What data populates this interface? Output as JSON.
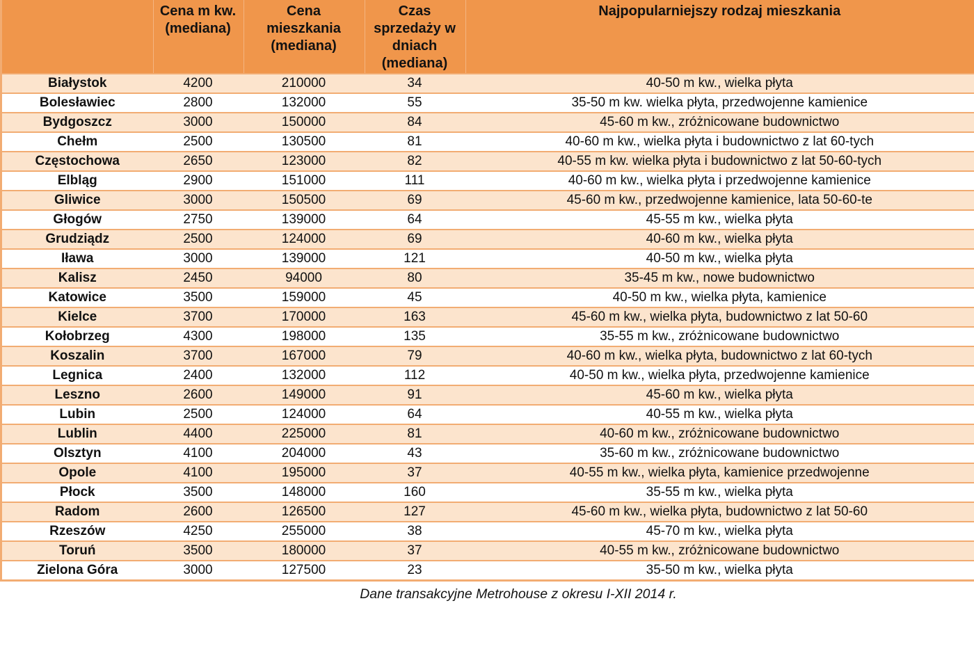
{
  "chart_data": {
    "type": "table",
    "title": "",
    "columns": [
      "",
      "Cena m kw.\n(mediana)",
      "Cena\nmieszkania\n(mediana)",
      "Czas\nsprzedaży w\ndniach\n(mediana)",
      "Najpopularniejszy rodzaj mieszkania"
    ],
    "rows": [
      [
        "Białystok",
        "4200",
        "210000",
        "34",
        "40-50 m kw., wielka płyta"
      ],
      [
        "Bolesławiec",
        "2800",
        "132000",
        "55",
        "35-50 m kw. wielka płyta, przedwojenne kamienice"
      ],
      [
        "Bydgoszcz",
        "3000",
        "150000",
        "84",
        "45-60 m kw., zróżnicowane budownictwo"
      ],
      [
        "Chełm",
        "2500",
        "130500",
        "81",
        "40-60 m kw., wielka płyta i budownictwo z lat 60-tych"
      ],
      [
        "Częstochowa",
        "2650",
        "123000",
        "82",
        "40-55 m kw. wielka płyta i budownictwo z lat 50-60-tych"
      ],
      [
        "Elbląg",
        "2900",
        "151000",
        "111",
        "40-60 m kw., wielka płyta i przedwojenne kamienice"
      ],
      [
        "Gliwice",
        "3000",
        "150500",
        "69",
        "45-60 m kw., przedwojenne kamienice, lata 50-60-te"
      ],
      [
        "Głogów",
        "2750",
        "139000",
        "64",
        "45-55 m kw., wielka płyta"
      ],
      [
        "Grudziądz",
        "2500",
        "124000",
        "69",
        "40-60 m kw., wielka płyta"
      ],
      [
        "Iława",
        "3000",
        "139000",
        "121",
        "40-50 m kw., wielka płyta"
      ],
      [
        "Kalisz",
        "2450",
        "94000",
        "80",
        "35-45 m kw., nowe budownictwo"
      ],
      [
        "Katowice",
        "3500",
        "159000",
        "45",
        "40-50 m kw., wielka płyta, kamienice"
      ],
      [
        "Kielce",
        "3700",
        "170000",
        "163",
        "45-60 m kw., wielka płyta, budownictwo z lat 50-60"
      ],
      [
        "Kołobrzeg",
        "4300",
        "198000",
        "135",
        "35-55 m kw., zróżnicowane budownictwo"
      ],
      [
        "Koszalin",
        "3700",
        "167000",
        "79",
        "40-60 m kw., wielka płyta, budownictwo z lat 60-tych"
      ],
      [
        "Legnica",
        "2400",
        "132000",
        "112",
        "40-50 m kw., wielka płyta, przedwojenne kamienice"
      ],
      [
        "Leszno",
        "2600",
        "149000",
        "91",
        "45-60 m kw., wielka płyta"
      ],
      [
        "Lubin",
        "2500",
        "124000",
        "64",
        "40-55 m kw., wielka płyta"
      ],
      [
        "Lublin",
        "4400",
        "225000",
        "81",
        "40-60 m kw., zróżnicowane budownictwo"
      ],
      [
        "Olsztyn",
        "4100",
        "204000",
        "43",
        "35-60 m kw., zróżnicowane budownictwo"
      ],
      [
        "Opole",
        "4100",
        "195000",
        "37",
        "40-55 m kw., wielka płyta, kamienice przedwojenne"
      ],
      [
        "Płock",
        "3500",
        "148000",
        "160",
        "35-55 m kw., wielka płyta"
      ],
      [
        "Radom",
        "2600",
        "126500",
        "127",
        "45-60 m kw., wielka płyta, budownictwo z lat 50-60"
      ],
      [
        "Rzeszów",
        "4250",
        "255000",
        "38",
        "45-70 m kw., wielka płyta"
      ],
      [
        "Toruń",
        "3500",
        "180000",
        "37",
        "40-55 m kw., zróżnicowane budownictwo"
      ],
      [
        "Zielona Góra",
        "3000",
        "127500",
        "23",
        "35-50 m kw., wielka płyta"
      ]
    ],
    "caption": "Dane transakcyjne Metrohouse z okresu I-XII 2014 r.",
    "colors": {
      "header_bg": "#f0964b",
      "row_alt_bg": "#fce4cd",
      "row_bg": "#ffffff",
      "border": "#f2ac72",
      "text": "#111111"
    },
    "layout": {
      "striped": true,
      "header_align": "center",
      "cell_align": "center"
    }
  }
}
